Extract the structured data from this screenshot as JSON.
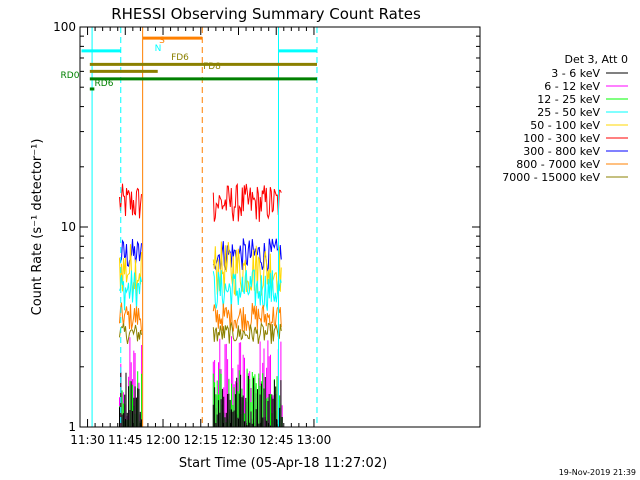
{
  "colors": {
    "background": "#ffffff",
    "axis": "#000000",
    "band_3_6": "#000000",
    "band_6_12": "#ff00ff",
    "band_12_25": "#00ff00",
    "band_25_50": "#00ffff",
    "band_50_100": "#ffd700",
    "band_100_300": "#ff0000",
    "band_300_800": "#0000ff",
    "band_800_7000": "#ff8000",
    "band_7000_15000": "#8b8000",
    "flag_saa_night": "#00ffff",
    "flag_s": "#ff8000",
    "flag_fd": "#8b8000",
    "flag_rd": "#008000"
  },
  "footer": {
    "timestamp": "19-Nov-2019 21:39"
  },
  "chart_data": {
    "type": "line",
    "title": "RHESSI Observing Summary Count Rates",
    "xlabel": "Start Time (05-Apr-18 11:27:02)",
    "ylabel": "Count Rate (s⁻¹ detector⁻¹)",
    "ylog": true,
    "ylim": [
      1,
      100
    ],
    "xlim_minutes": [
      11.45,
      14.1
    ],
    "x_tick_labels": [
      "11:30",
      "11:45",
      "12:00",
      "12:15",
      "12:30",
      "12:45",
      "13:00"
    ],
    "x_tick_minutes": [
      11.5,
      11.75,
      12.0,
      12.25,
      12.5,
      12.75,
      13.0
    ],
    "y_tick_labels": [
      "1",
      "10",
      "100"
    ],
    "y_tick_values": [
      1,
      10,
      100
    ],
    "legend": {
      "header": "Det 3, Att 0",
      "entries": [
        {
          "label": "3 - 6 keV",
          "color_key": "band_3_6"
        },
        {
          "label": "6 - 12 keV",
          "color_key": "band_6_12"
        },
        {
          "label": "12 - 25 keV",
          "color_key": "band_12_25"
        },
        {
          "label": "25 - 50 keV",
          "color_key": "band_25_50"
        },
        {
          "label": "50 - 100 keV",
          "color_key": "band_50_100"
        },
        {
          "label": "100 - 300 keV",
          "color_key": "band_100_300"
        },
        {
          "label": "300 - 800 keV",
          "color_key": "band_300_800"
        },
        {
          "label": "800 - 7000 keV",
          "color_key": "band_800_7000"
        },
        {
          "label": "7000 - 15000 keV",
          "color_key": "band_7000_15000"
        }
      ]
    },
    "data_segments": [
      {
        "start": 11.712,
        "end": 11.862
      },
      {
        "start": 12.333,
        "end": 12.79
      }
    ],
    "bands": [
      {
        "color_key": "band_100_300",
        "low": 10.5,
        "high": 16.5
      },
      {
        "color_key": "band_300_800",
        "low": 6.0,
        "high": 8.8
      },
      {
        "color_key": "band_50_100",
        "low": 4.5,
        "high": 8.5
      },
      {
        "color_key": "band_25_50",
        "low": 3.8,
        "high": 6.2
      },
      {
        "color_key": "band_800_7000",
        "low": 3.0,
        "high": 4.2
      },
      {
        "color_key": "band_7000_15000",
        "low": 2.6,
        "high": 3.3
      },
      {
        "color_key": "band_6_12",
        "low": 1.0,
        "high": 2.9
      },
      {
        "color_key": "band_12_25",
        "low": 1.0,
        "high": 2.0
      },
      {
        "color_key": "band_3_6",
        "low": 1.0,
        "high": 1.9
      }
    ],
    "vertical_markers": [
      {
        "minute": 11.53,
        "style": "solid",
        "color_key": "flag_saa_night"
      },
      {
        "minute": 11.72,
        "style": "dashed",
        "color_key": "flag_saa_night"
      },
      {
        "minute": 11.865,
        "style": "solid",
        "color_key": "flag_s"
      },
      {
        "minute": 12.26,
        "style": "dashed",
        "color_key": "flag_s"
      },
      {
        "minute": 12.765,
        "style": "solid",
        "color_key": "flag_saa_night"
      },
      {
        "minute": 13.02,
        "style": "dashed",
        "color_key": "flag_saa_night"
      }
    ],
    "flags": [
      {
        "label": "N",
        "color_key": "flag_saa_night",
        "level": 76,
        "segments": [
          [
            11.46,
            11.72
          ],
          [
            12.765,
            13.02
          ]
        ]
      },
      {
        "label": "S",
        "color_key": "flag_s",
        "level": 88,
        "segments": [
          [
            11.865,
            12.26
          ]
        ]
      },
      {
        "label": "FD6",
        "color_key": "flag_fd",
        "level": 65,
        "segments": [
          [
            11.515,
            13.02
          ]
        ]
      },
      {
        "label": "FD8",
        "color_key": "flag_fd",
        "level": 60,
        "segments": [
          [
            11.515,
            11.965
          ]
        ]
      },
      {
        "label": "RD0",
        "color_key": "flag_rd",
        "level": 55,
        "segments": [
          [
            11.515,
            13.02
          ]
        ]
      },
      {
        "label": "RD6",
        "color_key": "flag_rd",
        "level": 49,
        "segments": [
          [
            11.515,
            11.545
          ]
        ]
      }
    ]
  }
}
